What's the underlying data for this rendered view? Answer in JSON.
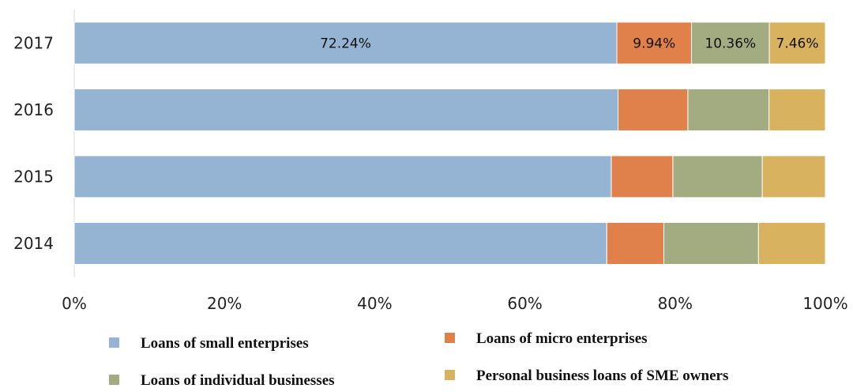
{
  "chart_data": {
    "type": "bar",
    "orientation": "horizontal",
    "stacked": true,
    "normalized": true,
    "categories": [
      "2017",
      "2016",
      "2015",
      "2014"
    ],
    "series": [
      {
        "name": "Loans of small enterprises",
        "color": "#95b4d4",
        "values": [
          72.24,
          72.4,
          71.5,
          70.9
        ]
      },
      {
        "name": "Loans of micro enterprises",
        "color": "#e0804a",
        "values": [
          9.94,
          9.3,
          8.2,
          7.6
        ]
      },
      {
        "name": "Loans of individual businesses",
        "color": "#a3ab80",
        "values": [
          10.36,
          10.8,
          11.9,
          12.6
        ]
      },
      {
        "name": "Personal business loans of SME owners",
        "color": "#d8b25e",
        "values": [
          7.46,
          7.5,
          8.4,
          8.9
        ]
      }
    ],
    "data_labels": [
      {
        "category": "2017",
        "values": [
          "72.24%",
          "9.94%",
          "10.36%",
          "7.46%"
        ]
      }
    ],
    "xlim": [
      0,
      100
    ],
    "x_ticks": [
      "0%",
      "20%",
      "40%",
      "60%",
      "80%",
      "100%"
    ],
    "title": "",
    "xlabel": "",
    "ylabel": "",
    "grid": false,
    "legend_position": "bottom"
  }
}
